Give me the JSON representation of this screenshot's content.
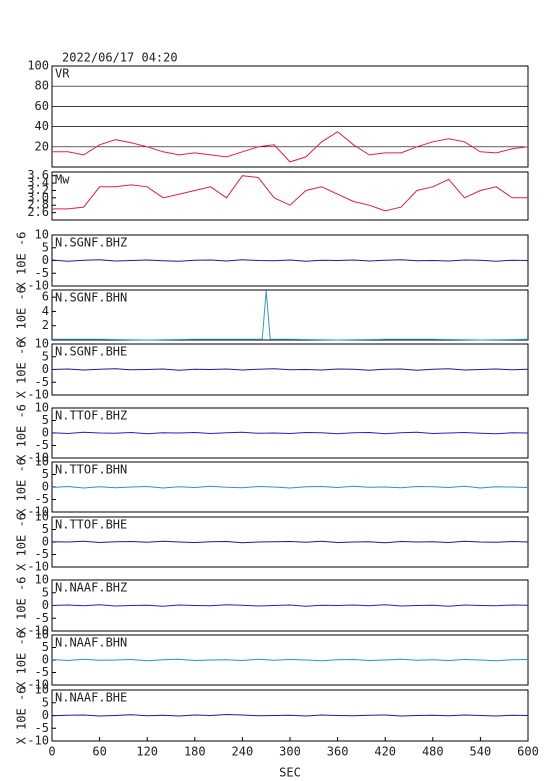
{
  "header": {
    "title": "2022/06/17 04:20"
  },
  "chart_data": [
    {
      "type": "line",
      "title": "VR",
      "x": [
        0,
        20,
        40,
        60,
        80,
        100,
        120,
        140,
        160,
        180,
        200,
        220,
        240,
        260,
        280,
        300,
        320,
        340,
        360,
        380,
        400,
        420,
        440,
        460,
        480,
        500,
        520,
        540,
        560,
        580,
        600
      ],
      "series": [
        {
          "color": "#e0204a",
          "values": [
            15,
            15,
            12,
            22,
            27,
            24,
            20,
            15,
            12,
            14,
            12,
            10,
            15,
            20,
            22,
            5,
            10,
            25,
            35,
            22,
            12,
            14,
            14,
            20,
            25,
            28,
            25,
            15,
            14,
            18,
            20
          ]
        }
      ],
      "ylim": [
        0,
        100
      ],
      "yticks": [
        20,
        40,
        60,
        80,
        100
      ],
      "grid": true
    },
    {
      "type": "line",
      "title": "Mw",
      "x": [
        0,
        20,
        40,
        60,
        80,
        100,
        120,
        140,
        160,
        180,
        200,
        220,
        240,
        260,
        280,
        300,
        320,
        340,
        360,
        380,
        400,
        420,
        440,
        460,
        480,
        500,
        520,
        540,
        560,
        580,
        600
      ],
      "series": [
        {
          "color": "#e0204a",
          "values": [
            2.7,
            2.7,
            2.75,
            3.3,
            3.3,
            3.35,
            3.3,
            3.0,
            3.1,
            3.2,
            3.3,
            3.0,
            3.6,
            3.55,
            3.0,
            2.8,
            3.2,
            3.3,
            3.1,
            2.9,
            2.8,
            2.65,
            2.75,
            3.2,
            3.3,
            3.5,
            3.0,
            3.2,
            3.3,
            3.0,
            3.0
          ]
        }
      ],
      "ylim": [
        2.4,
        3.7
      ],
      "yticks": [
        {
          "value": 2.6,
          "label": "2.6"
        },
        {
          "value": 2.8,
          "label": "2.8"
        },
        {
          "value": 3,
          "label": "3.0"
        },
        {
          "value": 3.2,
          "label": "3.2"
        },
        {
          "value": 3.4,
          "label": "3.4"
        },
        {
          "value": 3.6,
          "label": "3.6"
        }
      ]
    },
    {
      "type": "line",
      "title": "N.SGNF.BHZ",
      "ylabel": "X 10E -6",
      "x": [
        0,
        20,
        40,
        60,
        80,
        100,
        120,
        140,
        160,
        180,
        200,
        220,
        240,
        260,
        280,
        300,
        320,
        340,
        360,
        380,
        400,
        420,
        440,
        460,
        480,
        500,
        520,
        540,
        560,
        580,
        600
      ],
      "series": [
        {
          "color": "#1c1c9a",
          "values": [
            0.2,
            -0.3,
            0.1,
            0.3,
            -0.2,
            0,
            0.2,
            -0.1,
            -0.3,
            0.1,
            0.2,
            -0.2,
            0.3,
            0,
            -0.1,
            0.2,
            -0.3,
            0.1,
            0,
            0.2,
            -0.2,
            0.1,
            0.3,
            -0.1,
            0,
            -0.2,
            0.2,
            0.1,
            -0.3,
            0.1,
            0
          ]
        }
      ],
      "ylim": [
        -10,
        10
      ],
      "yticks": [
        -10,
        -5,
        0,
        5,
        10
      ]
    },
    {
      "type": "line",
      "title": "N.SGNF.BHN",
      "ylabel": "X 10E -6",
      "x": [
        0,
        60,
        120,
        180,
        240,
        265,
        270,
        275,
        300,
        360,
        420,
        480,
        540,
        600
      ],
      "series": [
        {
          "color": "#2f9fb0",
          "values": [
            0.1,
            0.1,
            0,
            0.1,
            0.1,
            0.1,
            6.9,
            0.1,
            0.1,
            0,
            0.1,
            0.1,
            0,
            0.1
          ]
        }
      ],
      "ylim": [
        0,
        7
      ],
      "yticks": [
        2,
        4,
        6
      ]
    },
    {
      "type": "line",
      "title": "N.SGNF.BHE",
      "ylabel": "X 10E -6",
      "x": [
        0,
        20,
        40,
        60,
        80,
        100,
        120,
        140,
        160,
        180,
        200,
        220,
        240,
        260,
        280,
        300,
        320,
        340,
        360,
        380,
        400,
        420,
        440,
        460,
        480,
        500,
        520,
        540,
        560,
        580,
        600
      ],
      "series": [
        {
          "color": "#1c1c9a",
          "values": [
            0,
            0.2,
            -0.2,
            0.1,
            0.3,
            -0.1,
            0,
            0.2,
            -0.3,
            0.1,
            0,
            0.2,
            -0.2,
            0.1,
            0.3,
            -0.1,
            0,
            -0.2,
            0.2,
            0.1,
            -0.3,
            0.1,
            0.2,
            -0.3,
            0.1,
            0.3,
            -0.2,
            0,
            0.2,
            -0.1,
            0.1
          ]
        }
      ],
      "ylim": [
        -10,
        10
      ],
      "yticks": [
        -10,
        -5,
        0,
        5,
        10
      ]
    },
    {
      "type": "line",
      "title": "N.TTOF.BHZ",
      "ylabel": "X 10E -6",
      "x": [
        0,
        20,
        40,
        60,
        80,
        100,
        120,
        140,
        160,
        180,
        200,
        220,
        240,
        260,
        280,
        300,
        320,
        340,
        360,
        380,
        400,
        420,
        440,
        460,
        480,
        500,
        520,
        540,
        560,
        580,
        600
      ],
      "series": [
        {
          "color": "#2222c8",
          "values": [
            0.1,
            -0.2,
            0.3,
            0,
            -0.1,
            0.2,
            -0.3,
            0.1,
            0,
            0.2,
            -0.2,
            0.1,
            0.3,
            -0.1,
            0,
            -0.2,
            0.2,
            0.1,
            -0.3,
            0.1,
            0.2,
            -0.3,
            0.1,
            0.3,
            -0.2,
            0,
            0.2,
            -0.1,
            -0.3,
            0.1,
            0
          ]
        }
      ],
      "ylim": [
        -10,
        10
      ],
      "yticks": [
        -10,
        -5,
        0,
        5,
        10
      ]
    },
    {
      "type": "line",
      "title": "N.TTOF.BHN",
      "ylabel": "X 10E -6",
      "x": [
        0,
        20,
        40,
        60,
        80,
        100,
        120,
        140,
        160,
        180,
        200,
        220,
        240,
        260,
        280,
        300,
        320,
        340,
        360,
        380,
        400,
        420,
        440,
        460,
        480,
        500,
        520,
        540,
        560,
        580,
        600
      ],
      "series": [
        {
          "color": "#2a90e0",
          "values": [
            -0.2,
            0.2,
            -0.4,
            0.1,
            -0.3,
            0,
            0.2,
            -0.4,
            0.1,
            -0.2,
            0.3,
            -0.1,
            -0.3,
            0.2,
            0,
            -0.4,
            0.1,
            0.2,
            -0.2,
            0.3,
            -0.1,
            0,
            -0.3,
            0.2,
            0.1,
            -0.2,
            0.3,
            -0.4,
            0.1,
            0,
            -0.2
          ]
        }
      ],
      "ylim": [
        -10,
        10
      ],
      "yticks": [
        -10,
        -5,
        0,
        5,
        10
      ]
    },
    {
      "type": "line",
      "title": "N.TTOF.BHE",
      "ylabel": "X 10E -6",
      "x": [
        0,
        20,
        40,
        60,
        80,
        100,
        120,
        140,
        160,
        180,
        200,
        220,
        240,
        260,
        280,
        300,
        320,
        340,
        360,
        380,
        400,
        420,
        440,
        460,
        480,
        500,
        520,
        540,
        560,
        580,
        600
      ],
      "series": [
        {
          "color": "#1c1c9a",
          "values": [
            0.1,
            0,
            0.3,
            -0.2,
            0.1,
            0.2,
            -0.1,
            0.3,
            0,
            -0.2,
            0.1,
            0.2,
            -0.3,
            0,
            0.1,
            0.2,
            -0.1,
            0.3,
            -0.2,
            0,
            0.1,
            -0.3,
            0.2,
            0,
            0.1,
            -0.2,
            0.3,
            0,
            -0.1,
            0.2,
            0
          ]
        }
      ],
      "ylim": [
        -10,
        10
      ],
      "yticks": [
        -10,
        -5,
        0,
        5,
        10
      ]
    },
    {
      "type": "line",
      "title": "N.NAAF.BHZ",
      "ylabel": "X 10E -6",
      "x": [
        0,
        20,
        40,
        60,
        80,
        100,
        120,
        140,
        160,
        180,
        200,
        220,
        240,
        260,
        280,
        300,
        320,
        340,
        360,
        380,
        400,
        420,
        440,
        460,
        480,
        500,
        520,
        540,
        560,
        580,
        600
      ],
      "series": [
        {
          "color": "#2222c8",
          "values": [
            0,
            0.2,
            -0.1,
            0.3,
            -0.2,
            0,
            0.1,
            -0.3,
            0.2,
            0,
            -0.1,
            0.3,
            0.1,
            -0.2,
            0,
            0.2,
            -0.3,
            0.1,
            0,
            0.2,
            -0.1,
            0.3,
            -0.2,
            0,
            0.1,
            -0.3,
            0.2,
            0,
            -0.1,
            0.2,
            0.1
          ]
        }
      ],
      "ylim": [
        -10,
        10
      ],
      "yticks": [
        -10,
        -5,
        0,
        5,
        10
      ]
    },
    {
      "type": "line",
      "title": "N.NAAF.BHN",
      "ylabel": "X 10E -6",
      "x": [
        0,
        20,
        40,
        60,
        80,
        100,
        120,
        140,
        160,
        180,
        200,
        220,
        240,
        260,
        280,
        300,
        320,
        340,
        360,
        380,
        400,
        420,
        440,
        460,
        480,
        500,
        520,
        540,
        560,
        580,
        600
      ],
      "series": [
        {
          "color": "#2a90e0",
          "values": [
            0.2,
            -0.2,
            0.3,
            -0.1,
            0,
            0.2,
            -0.3,
            0.1,
            0.3,
            -0.2,
            0,
            0.1,
            -0.2,
            0.3,
            -0.1,
            0.2,
            0,
            -0.3,
            0.1,
            0.2,
            -0.2,
            0,
            0.3,
            -0.1,
            0.1,
            -0.2,
            0.2,
            0,
            -0.3,
            0.1,
            0.2
          ]
        }
      ],
      "ylim": [
        -10,
        10
      ],
      "yticks": [
        -10,
        -5,
        0,
        5,
        10
      ]
    },
    {
      "type": "line",
      "title": "N.NAAF.BHE",
      "ylabel": "X 10E -6",
      "x": [
        0,
        20,
        40,
        60,
        80,
        100,
        120,
        140,
        160,
        180,
        200,
        220,
        240,
        260,
        280,
        300,
        320,
        340,
        360,
        380,
        400,
        420,
        440,
        460,
        480,
        500,
        520,
        540,
        560,
        580,
        600
      ],
      "series": [
        {
          "color": "#1c1c9a",
          "values": [
            -0.1,
            0.1,
            0.2,
            -0.2,
            0,
            0.3,
            -0.1,
            0.1,
            -0.2,
            0.2,
            0,
            0.4,
            0.2,
            -0.1,
            0,
            0.1,
            -0.2,
            0.2,
            0,
            -0.1,
            0.1,
            0.2,
            -0.2,
            0,
            0.1,
            -0.1,
            0.2,
            0,
            -0.2,
            0.1,
            0
          ]
        }
      ],
      "ylim": [
        -10,
        10
      ],
      "yticks": [
        -10,
        -5,
        0,
        5,
        10
      ],
      "xlim": [
        0,
        600
      ],
      "xticks": [
        0,
        60,
        120,
        180,
        240,
        300,
        360,
        420,
        480,
        540,
        600
      ],
      "xlabel": "SEC"
    }
  ]
}
